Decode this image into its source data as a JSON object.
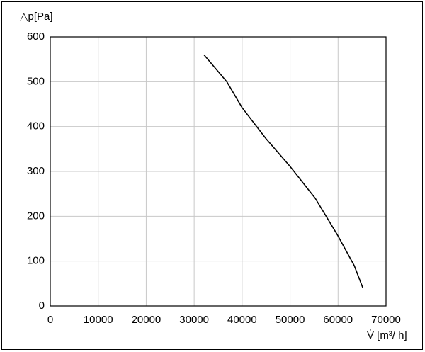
{
  "chart_data": {
    "type": "line",
    "y_label": "△p[Pa]",
    "x_label": "V̇ [m³/ h]",
    "x": [
      32050,
      36800,
      40000,
      44900,
      50000,
      55250,
      60000,
      63370,
      65140
    ],
    "series": [
      {
        "color": "#000000",
        "values": [
          560,
          500,
          442,
          374,
          311,
          240,
          156,
          90,
          41
        ]
      }
    ],
    "xlim": [
      0,
      70000
    ],
    "xticks": [
      0,
      10000,
      20000,
      30000,
      40000,
      50000,
      60000,
      70000
    ],
    "ylim": [
      0,
      600
    ],
    "yticks": [
      0,
      100,
      200,
      300,
      400,
      500,
      600
    ],
    "grid": true
  }
}
